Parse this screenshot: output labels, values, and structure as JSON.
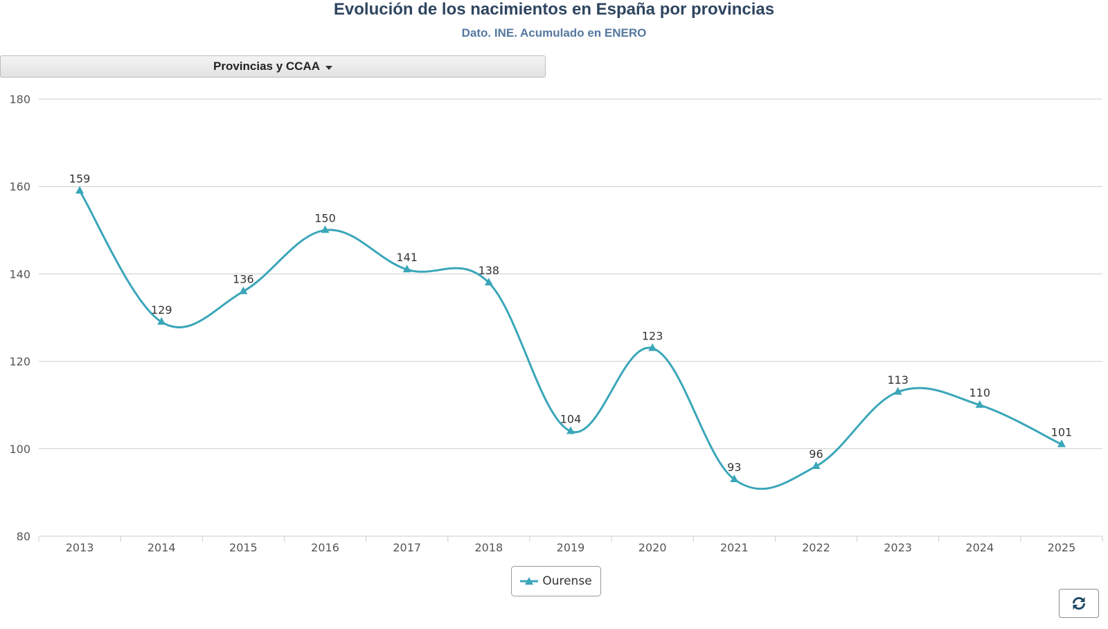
{
  "header": {
    "title": "Evolución de los nacimientos en España por provincias",
    "subtitle": "Dato. INE. Acumulado en ENERO"
  },
  "selector": {
    "label": "Provincias y CCAA"
  },
  "legend": {
    "label": "Ourense"
  },
  "toolbar": {
    "refresh_icon": "refresh-icon"
  },
  "colors": {
    "series": "#3aa6b9",
    "grid": "#cccccc",
    "axis_text": "#555555"
  },
  "chart_data": {
    "type": "line",
    "title": "Evolución de los nacimientos en España por provincias",
    "subtitle": "Dato. INE. Acumulado en ENERO",
    "categories": [
      "2013",
      "2014",
      "2015",
      "2016",
      "2017",
      "2018",
      "2019",
      "2020",
      "2021",
      "2022",
      "2023",
      "2024",
      "2025"
    ],
    "series": [
      {
        "name": "Ourense",
        "values": [
          159,
          129,
          136,
          150,
          141,
          138,
          104,
          123,
          93,
          96,
          113,
          110,
          101
        ],
        "marker": "triangle",
        "smooth": true
      }
    ],
    "ylim": [
      80,
      180
    ],
    "yticks": [
      80,
      100,
      120,
      140,
      160,
      180
    ],
    "xlabel": "",
    "ylabel": "",
    "grid": true,
    "data_labels": true,
    "legend_position": "bottom-center"
  }
}
